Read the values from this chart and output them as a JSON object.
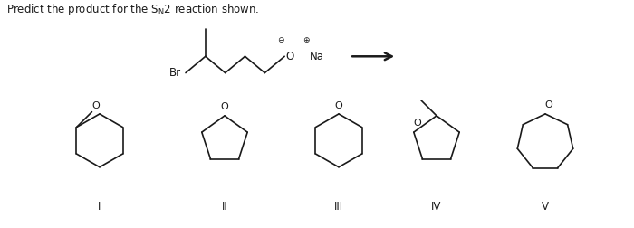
{
  "bg_color": "#ffffff",
  "line_color": "#1a1a1a",
  "text_color": "#1a1a1a",
  "roman_labels": [
    "I",
    "II",
    "III",
    "IV",
    "V"
  ],
  "title": "Predict the product for the $\\mathregular{S_N}$2 reaction shown."
}
